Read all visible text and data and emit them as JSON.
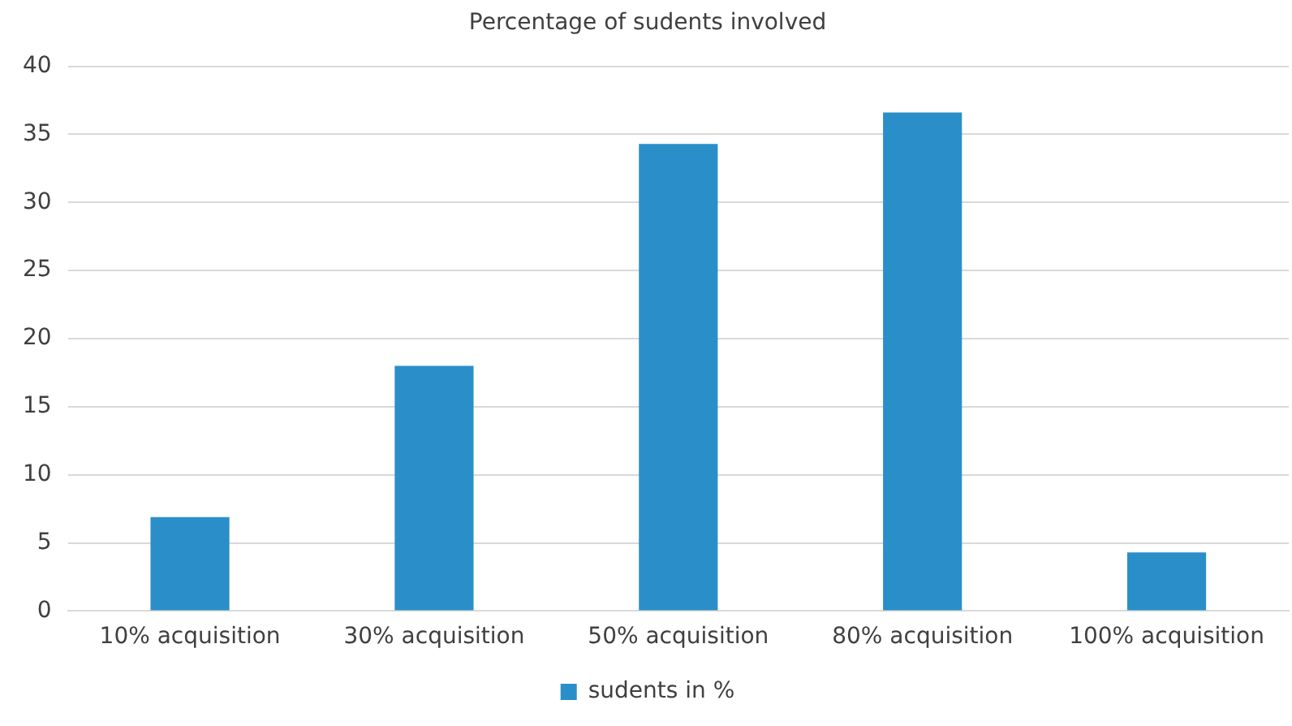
{
  "chart_data": {
    "type": "bar",
    "title": "Percentage of sudents involved",
    "categories": [
      "10% acquisition",
      "30% acquisition",
      "50% acquisition",
      "80% acquisition",
      "100% acquisition"
    ],
    "series": [
      {
        "name": "sudents in %",
        "color": "#2a8fc8",
        "values": [
          6.9,
          18,
          34.3,
          36.6,
          4.3
        ]
      }
    ],
    "ylim": [
      0,
      40
    ],
    "yticks": [
      0,
      5,
      10,
      15,
      20,
      25,
      30,
      35,
      40
    ],
    "grid": "y",
    "legend": "bottom"
  }
}
